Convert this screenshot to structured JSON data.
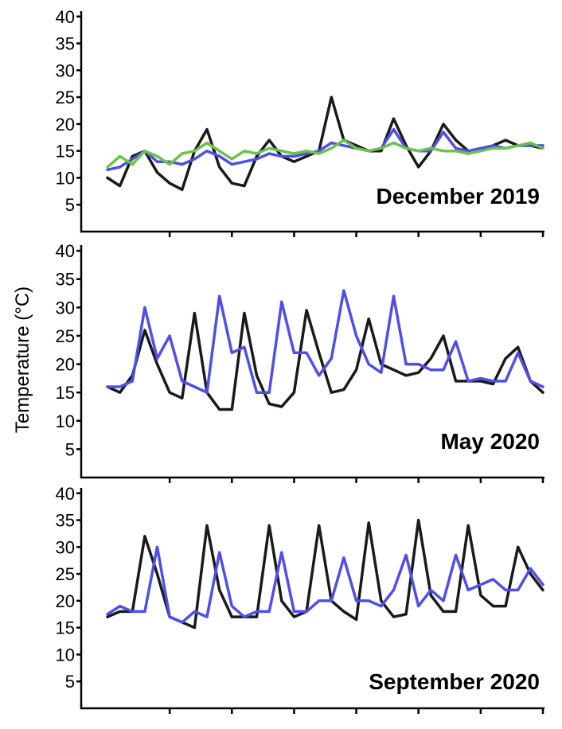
{
  "ylabel": "Temperature (°C)",
  "chart_data": [
    {
      "type": "line",
      "title": "December 2019",
      "xlim": [
        0,
        7
      ],
      "ylim": [
        0,
        41
      ],
      "yticks": [
        5,
        10,
        15,
        20,
        25,
        30,
        35,
        40
      ],
      "xticks": [
        1,
        2,
        3,
        4,
        5,
        6,
        7
      ],
      "x": [
        0,
        0.2,
        0.4,
        0.6,
        0.8,
        1.0,
        1.2,
        1.4,
        1.6,
        1.8,
        2.0,
        2.2,
        2.4,
        2.6,
        2.8,
        3.0,
        3.2,
        3.4,
        3.6,
        3.8,
        4.0,
        4.2,
        4.4,
        4.6,
        4.8,
        5.0,
        5.2,
        5.4,
        5.6,
        5.8,
        6.0,
        6.2,
        6.4,
        6.6,
        6.8,
        7.0
      ],
      "series": [
        {
          "color": "#1a1a1a",
          "values": [
            10,
            8.5,
            14,
            15,
            11,
            9,
            7.8,
            15,
            19,
            12,
            9,
            8.5,
            14,
            17,
            14,
            13,
            14,
            15,
            25,
            17,
            16,
            15,
            15,
            21,
            16,
            12,
            15,
            20,
            17,
            15,
            15,
            16,
            17,
            16,
            16,
            15.5
          ]
        },
        {
          "color": "#4f4fe8",
          "values": [
            11.5,
            12,
            13.5,
            15,
            13,
            13,
            12.5,
            13.5,
            15,
            14,
            12.5,
            13,
            13.5,
            14.5,
            14,
            14,
            14.5,
            15,
            16.5,
            16,
            15.5,
            15,
            15.5,
            19,
            15.5,
            15,
            15,
            18.5,
            15.5,
            15,
            15.5,
            16,
            15.5,
            16,
            16,
            16
          ]
        },
        {
          "color": "#6cc24a",
          "values": [
            12,
            14,
            12.5,
            15,
            14,
            12.5,
            14.5,
            15,
            16.5,
            15,
            13.5,
            15,
            14.5,
            15.5,
            15,
            14.5,
            15,
            14.5,
            15.5,
            17,
            15.5,
            15,
            15.5,
            16.5,
            15.5,
            15,
            15.5,
            15,
            15,
            14.5,
            15,
            15.5,
            15.5,
            16,
            16.5,
            15.5
          ]
        }
      ]
    },
    {
      "type": "line",
      "title": "May 2020",
      "xlim": [
        0,
        7
      ],
      "ylim": [
        0,
        41
      ],
      "yticks": [
        5,
        10,
        15,
        20,
        25,
        30,
        35,
        40
      ],
      "xticks": [
        1,
        2,
        3,
        4,
        5,
        6,
        7
      ],
      "x": [
        0,
        0.2,
        0.4,
        0.6,
        0.8,
        1.0,
        1.2,
        1.4,
        1.6,
        1.8,
        2.0,
        2.2,
        2.4,
        2.6,
        2.8,
        3.0,
        3.2,
        3.4,
        3.6,
        3.8,
        4.0,
        4.2,
        4.4,
        4.6,
        4.8,
        5.0,
        5.2,
        5.4,
        5.6,
        5.8,
        6.0,
        6.2,
        6.4,
        6.6,
        6.8,
        7.0
      ],
      "series": [
        {
          "color": "#1a1a1a",
          "values": [
            16,
            15,
            18,
            26,
            20,
            15,
            14,
            29,
            15,
            12,
            12,
            29,
            18,
            13,
            12.5,
            15,
            29.5,
            22,
            15,
            15.5,
            19,
            28,
            20,
            19,
            18,
            18.5,
            21,
            25,
            17,
            17,
            17,
            16.5,
            21,
            23,
            17,
            15
          ]
        },
        {
          "color": "#4f4fe8",
          "values": [
            16,
            16,
            17,
            30,
            21,
            25,
            17,
            16,
            15,
            32,
            22,
            23,
            15,
            15,
            31,
            22,
            22,
            18,
            21,
            33,
            25,
            20,
            18.5,
            32,
            20,
            20,
            19,
            19,
            24,
            17,
            17.5,
            17,
            17,
            22,
            17,
            16
          ]
        }
      ]
    },
    {
      "type": "line",
      "title": "September 2020",
      "xlim": [
        0,
        7
      ],
      "ylim": [
        0,
        41
      ],
      "yticks": [
        5,
        10,
        15,
        20,
        25,
        30,
        35,
        40
      ],
      "xticks": [
        1,
        2,
        3,
        4,
        5,
        6,
        7
      ],
      "x": [
        0,
        0.2,
        0.4,
        0.6,
        0.8,
        1.0,
        1.2,
        1.4,
        1.6,
        1.8,
        2.0,
        2.2,
        2.4,
        2.6,
        2.8,
        3.0,
        3.2,
        3.4,
        3.6,
        3.8,
        4.0,
        4.2,
        4.4,
        4.6,
        4.8,
        5.0,
        5.2,
        5.4,
        5.6,
        5.8,
        6.0,
        6.2,
        6.4,
        6.6,
        6.8,
        7.0
      ],
      "series": [
        {
          "color": "#1a1a1a",
          "values": [
            17,
            18,
            18,
            32,
            25,
            17,
            16,
            15,
            34,
            22,
            17,
            17,
            17,
            34,
            20,
            17,
            18,
            34,
            20,
            18,
            16.5,
            34.5,
            20,
            17,
            17.5,
            35,
            21,
            18,
            18,
            34,
            21,
            19,
            19,
            30,
            25,
            22
          ]
        },
        {
          "color": "#4f4fe8",
          "values": [
            17.5,
            19,
            18,
            18,
            30,
            17,
            16,
            18,
            17,
            29,
            19,
            17,
            18,
            18,
            29,
            18,
            18,
            20,
            20,
            28,
            20,
            20,
            19,
            22,
            28.5,
            19,
            22,
            20,
            28.5,
            22,
            23,
            24,
            22,
            22,
            26,
            23
          ]
        }
      ]
    }
  ]
}
